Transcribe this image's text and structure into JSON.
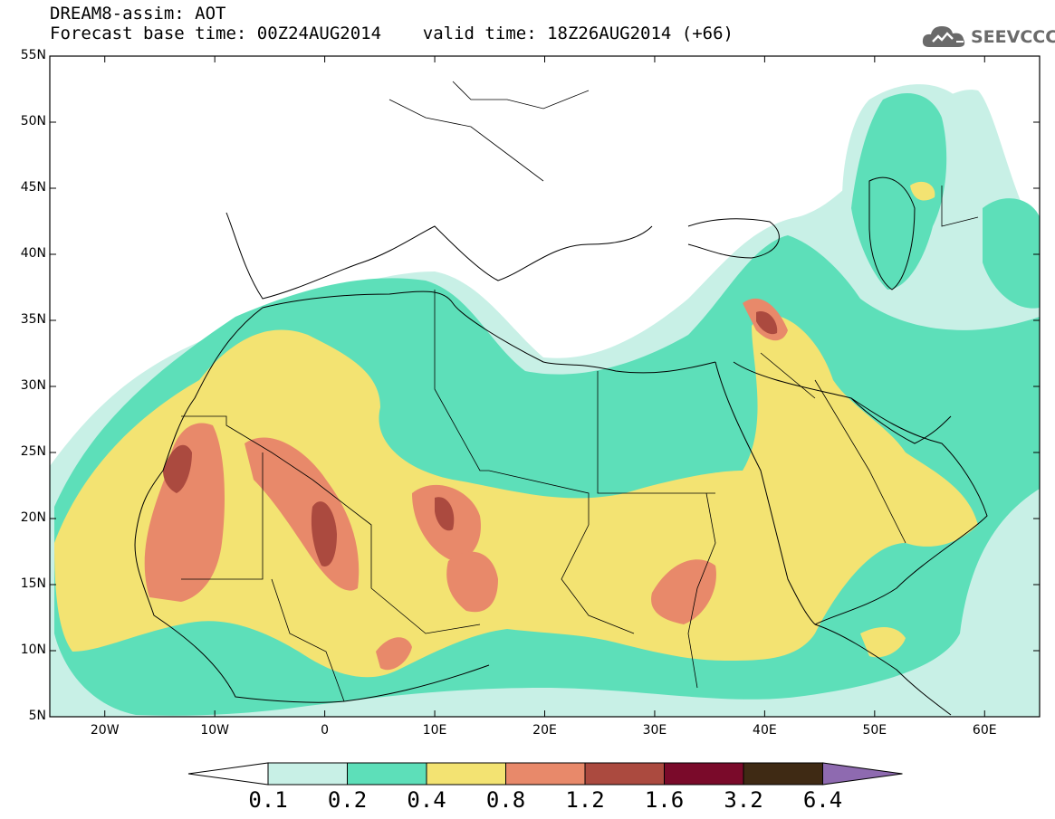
{
  "header": {
    "line1": "DREAM8-assim: AOT",
    "line2": "Forecast base time: 00Z24AUG2014    valid time: 18Z26AUG2014 (+66)"
  },
  "logo": {
    "text": "SEEVCCC",
    "icon": "cloud-icon",
    "color": "#6a6a6a"
  },
  "map": {
    "lon_range": [
      -25,
      65
    ],
    "lat_range": [
      5,
      55
    ],
    "lat_ticks": [
      {
        "value": 55,
        "label": "55N"
      },
      {
        "value": 50,
        "label": "50N"
      },
      {
        "value": 45,
        "label": "45N"
      },
      {
        "value": 40,
        "label": "40N"
      },
      {
        "value": 35,
        "label": "35N"
      },
      {
        "value": 30,
        "label": "30N"
      },
      {
        "value": 25,
        "label": "25N"
      },
      {
        "value": 20,
        "label": "20N"
      },
      {
        "value": 15,
        "label": "15N"
      },
      {
        "value": 10,
        "label": "10N"
      },
      {
        "value": 5,
        "label": "5N"
      }
    ],
    "lon_ticks": [
      {
        "value": -20,
        "label": "20W"
      },
      {
        "value": -10,
        "label": "10W"
      },
      {
        "value": 0,
        "label": "0"
      },
      {
        "value": 10,
        "label": "10E"
      },
      {
        "value": 20,
        "label": "20E"
      },
      {
        "value": 30,
        "label": "30E"
      },
      {
        "value": 40,
        "label": "40E"
      },
      {
        "value": 50,
        "label": "50E"
      },
      {
        "value": 60,
        "label": "60E"
      }
    ]
  },
  "colorbar": {
    "levels": [
      "0.1",
      "0.2",
      "0.4",
      "0.8",
      "1.2",
      "1.6",
      "3.2",
      "6.4"
    ],
    "colors": [
      "#c8f0e6",
      "#5ddfb9",
      "#f3e372",
      "#e8896a",
      "#ab4a3f",
      "#7a0a2a",
      "#3f2a14"
    ],
    "under_color": "#ffffff",
    "over_color": "#8e6ab0"
  }
}
